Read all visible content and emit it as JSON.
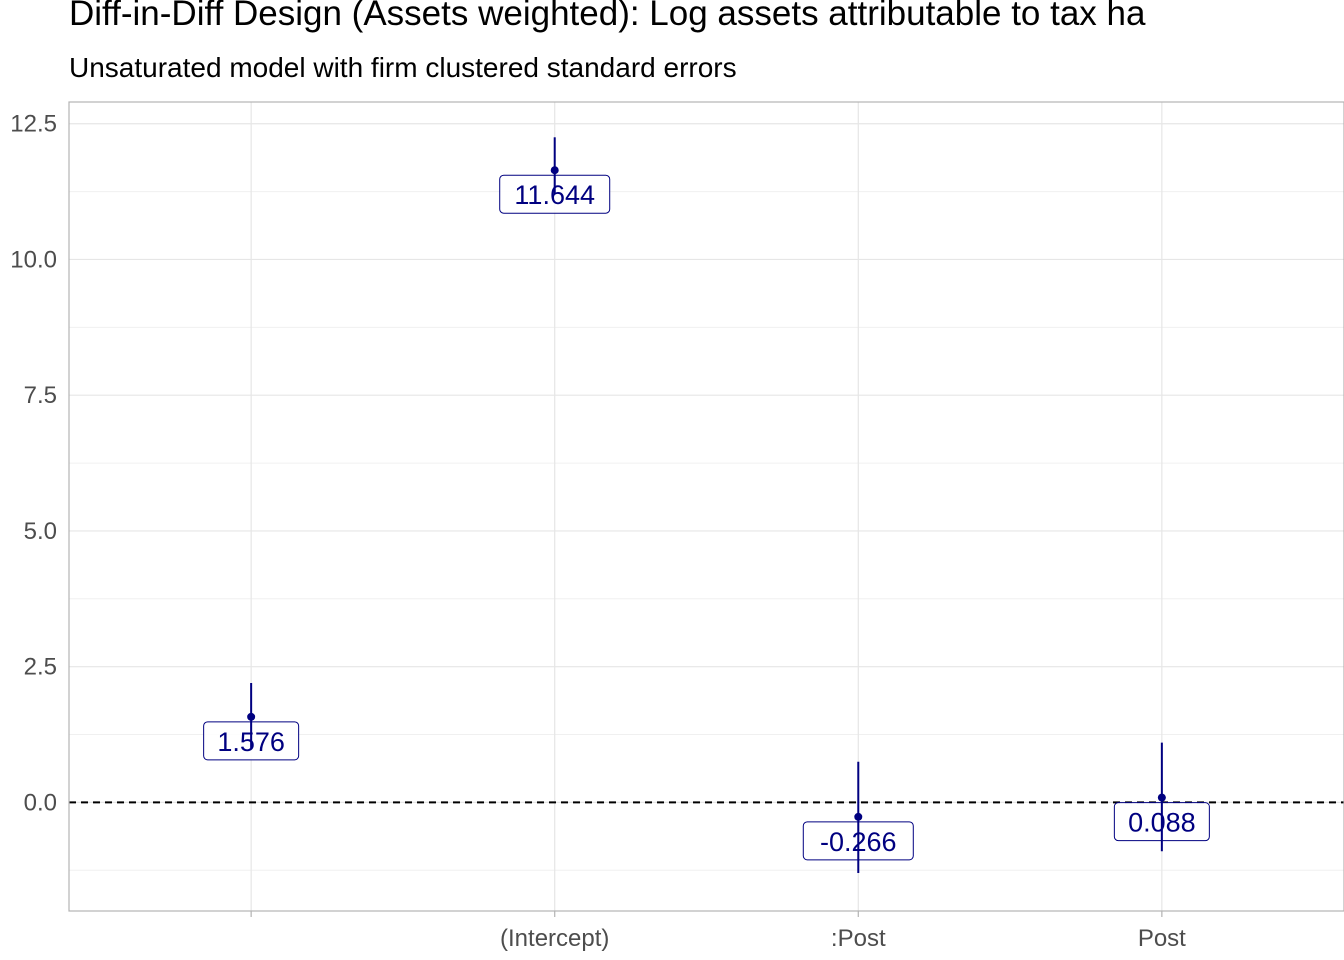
{
  "chart_data": {
    "type": "scatter",
    "title": "Diff-in-Diff Design (Assets weighted): Log assets attributable to tax ha",
    "subtitle": "Unsaturated model with firm clustered standard errors",
    "xlabel": "",
    "ylabel": "",
    "categories": [
      "",
      "(Intercept)",
      ":Post",
      "Post"
    ],
    "estimates": [
      1.576,
      11.644,
      -0.266,
      0.088
    ],
    "ci_low": [
      1.0,
      11.2,
      -1.3,
      -0.9
    ],
    "ci_high": [
      2.2,
      12.25,
      0.75,
      1.1
    ],
    "labels": [
      "1.576",
      "11.644",
      "-0.266",
      "0.088"
    ],
    "ylim": [
      -2.0,
      12.9
    ],
    "yticks": [
      0.0,
      2.5,
      5.0,
      7.5,
      10.0,
      12.5
    ],
    "ytick_labels": [
      "0.0",
      "2.5",
      "5.0",
      "7.5",
      "10.0",
      "12.5"
    ],
    "reference_line": 0,
    "grid": true,
    "colors": {
      "series": "#000080",
      "grid": "#e6e6e6",
      "axis": "#b3b3b3",
      "reference": "#000000"
    }
  }
}
